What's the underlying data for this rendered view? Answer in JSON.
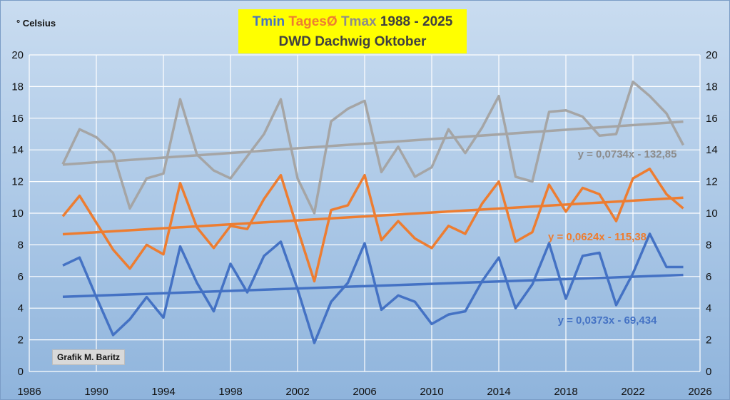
{
  "title": {
    "tmin": "Tmin",
    "tmean": "TagesØ",
    "tmax": "Tmax",
    "years": "1988 - 2025",
    "line2": "DWD Dachwig Oktober"
  },
  "unit_label": "° Celsius",
  "credit": "Grafik M. Baritz",
  "colors": {
    "tmin": "#4472c4",
    "tmean": "#ed7d31",
    "tmax": "#a5a5a5",
    "title_bg": "#ffff00"
  },
  "chart_data": {
    "type": "line",
    "xlim": [
      1986,
      2026
    ],
    "ylim": [
      0,
      20
    ],
    "x_ticks": [
      "1986",
      "1990",
      "1994",
      "1998",
      "2002",
      "2006",
      "2010",
      "2014",
      "2018",
      "2022",
      "2026"
    ],
    "y_ticks": [
      "0",
      "2",
      "4",
      "6",
      "8",
      "10",
      "12",
      "14",
      "16",
      "18",
      "20"
    ],
    "grid": true,
    "x": [
      1988,
      1989,
      1990,
      1991,
      1992,
      1993,
      1994,
      1995,
      1996,
      1997,
      1998,
      1999,
      2000,
      2001,
      2002,
      2003,
      2004,
      2005,
      2006,
      2007,
      2008,
      2009,
      2010,
      2011,
      2012,
      2013,
      2014,
      2015,
      2016,
      2017,
      2018,
      2019,
      2020,
      2021,
      2022,
      2023,
      2024,
      2025
    ],
    "series": [
      {
        "key": "tmax",
        "values": [
          13.1,
          15.3,
          14.8,
          13.8,
          10.3,
          12.2,
          12.5,
          17.2,
          13.7,
          12.7,
          12.2,
          13.6,
          15.0,
          17.2,
          12.2,
          10.0,
          15.8,
          16.6,
          17.1,
          12.6,
          14.2,
          12.3,
          12.9,
          15.3,
          13.8,
          15.4,
          17.4,
          12.3,
          12.0,
          16.4,
          16.5,
          16.1,
          14.9,
          15.0,
          18.3,
          17.4,
          16.3,
          14.3
        ],
        "trend": [
          0.0734,
          -132.85
        ],
        "equation": "y = 0,0734x - 132,85"
      },
      {
        "key": "tmean",
        "values": [
          9.8,
          11.1,
          9.4,
          7.7,
          6.5,
          8.0,
          7.4,
          11.9,
          9.1,
          7.8,
          9.2,
          9.0,
          10.9,
          12.4,
          9.0,
          5.7,
          10.2,
          10.5,
          12.4,
          8.3,
          9.5,
          8.4,
          7.8,
          9.2,
          8.7,
          10.6,
          12.0,
          8.2,
          8.8,
          11.8,
          10.1,
          11.6,
          11.2,
          9.5,
          12.2,
          12.8,
          11.2,
          10.3
        ],
        "trend": [
          0.0624,
          -115.38
        ],
        "equation": "y = 0,0624x - 115,38"
      },
      {
        "key": "tmin",
        "values": [
          6.7,
          7.2,
          4.7,
          2.3,
          3.3,
          4.7,
          3.4,
          7.9,
          5.6,
          3.8,
          6.8,
          5.0,
          7.3,
          8.2,
          5.2,
          1.8,
          4.4,
          5.6,
          8.1,
          3.9,
          4.8,
          4.4,
          3.0,
          3.6,
          3.8,
          5.7,
          7.2,
          4.0,
          5.5,
          8.1,
          4.6,
          7.3,
          7.5,
          4.2,
          6.2,
          8.7,
          6.6,
          6.6
        ],
        "trend": [
          0.0373,
          -69.434
        ],
        "equation": "y = 0,0373x - 69,434"
      }
    ]
  }
}
